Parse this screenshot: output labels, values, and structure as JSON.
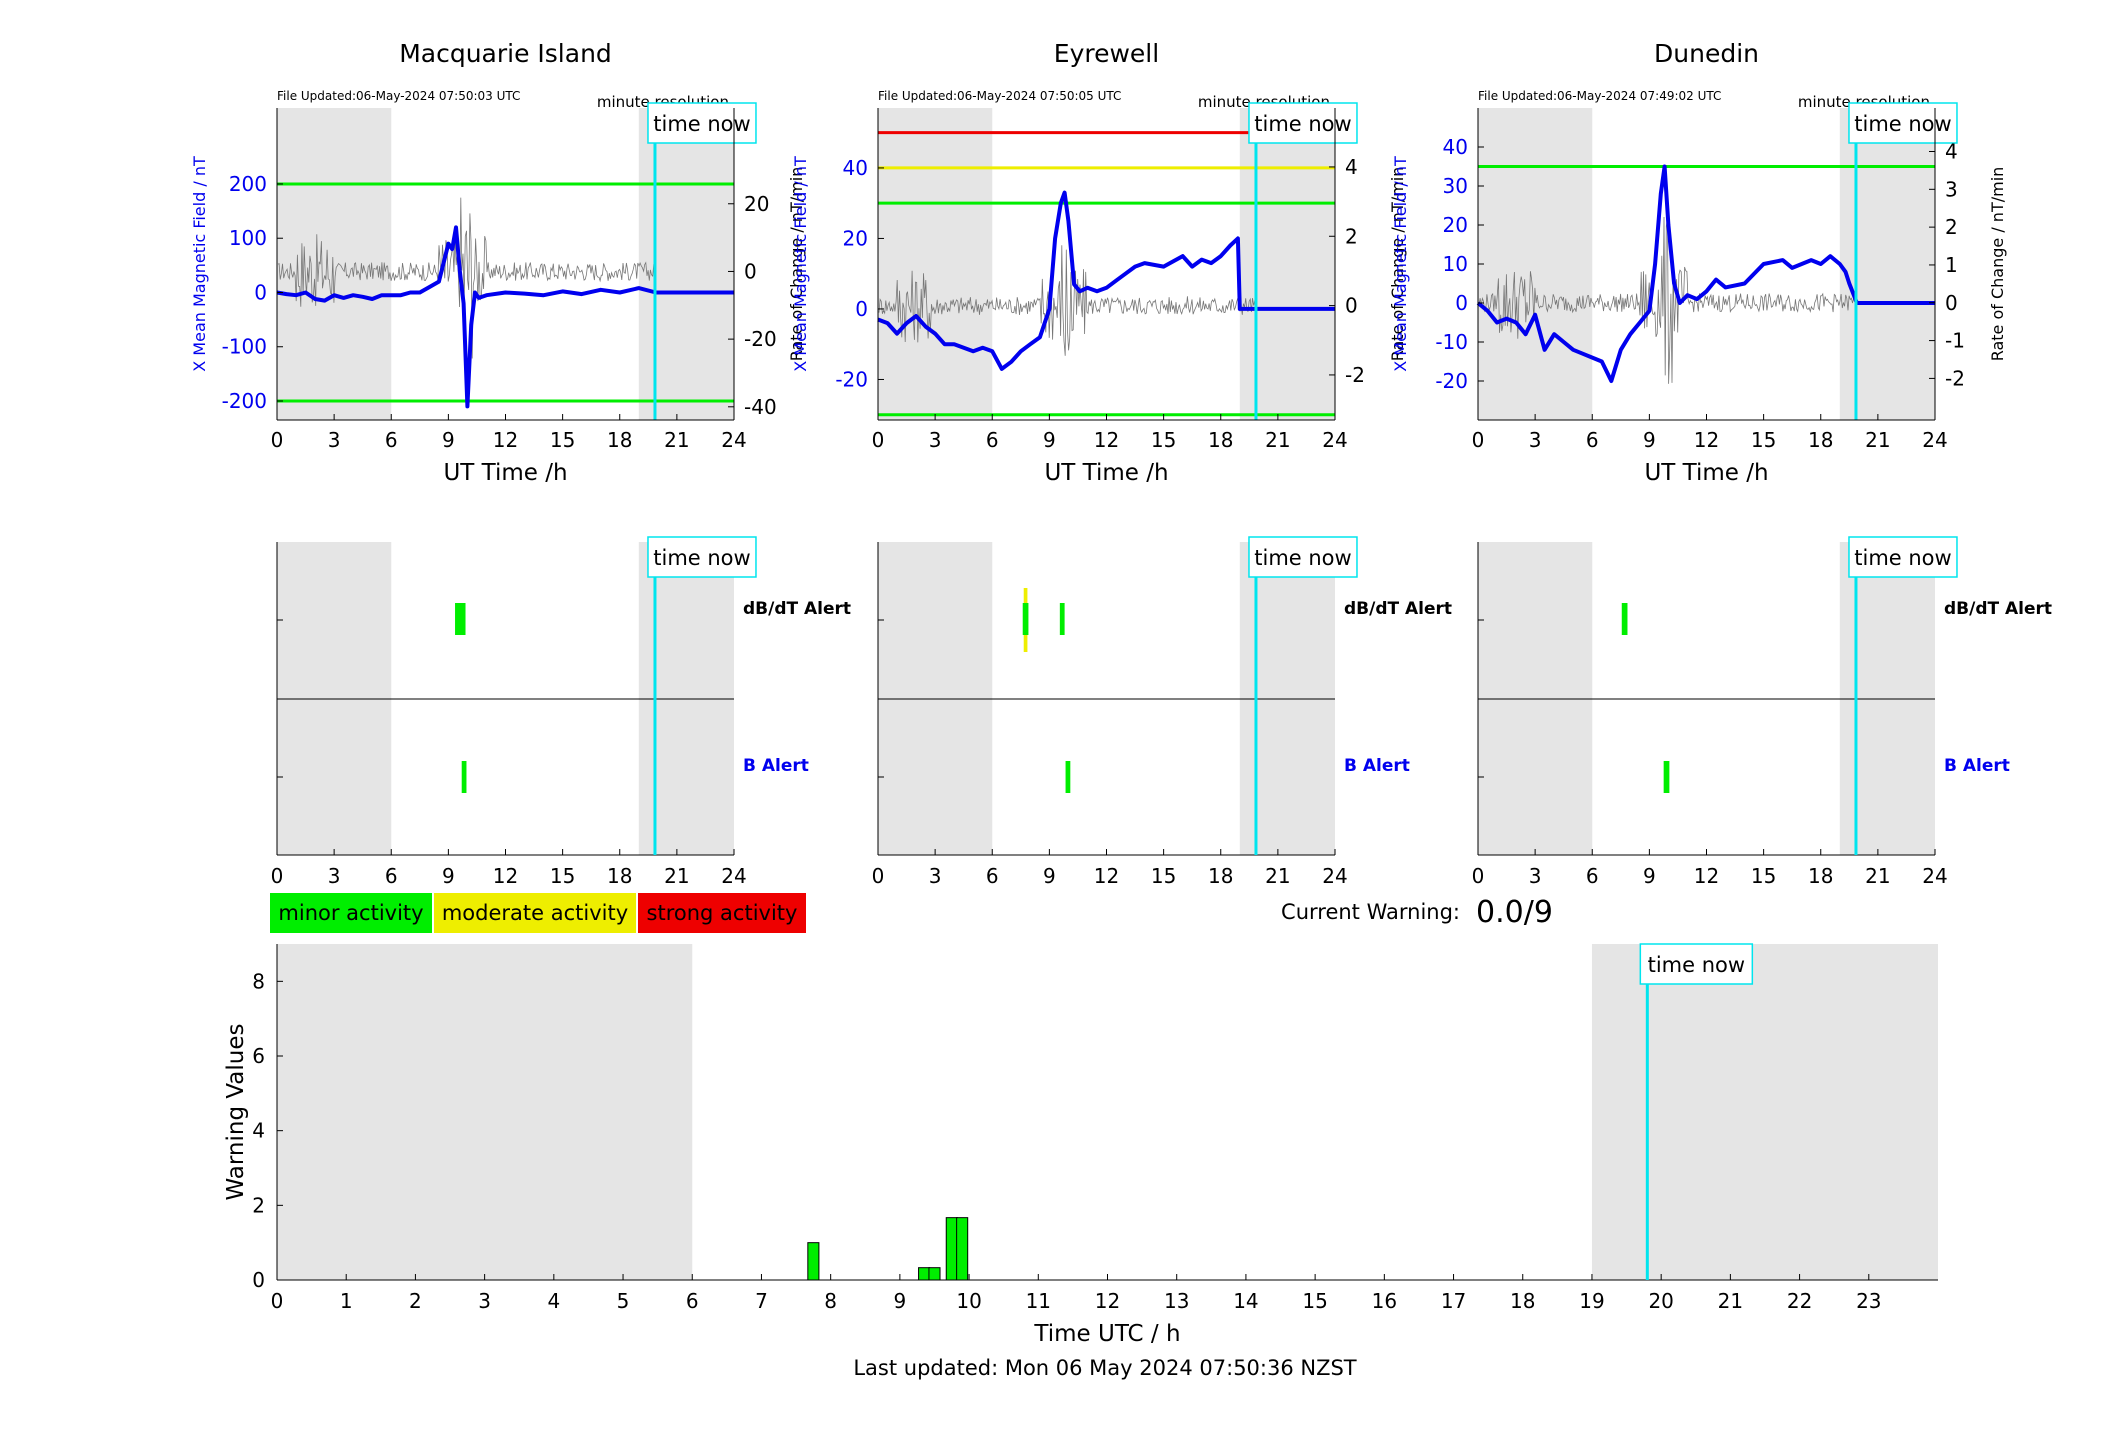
{
  "colors": {
    "blue": "#0000ee",
    "cyan": "#00e5ee",
    "green": "#00ee00",
    "yellow": "#eeee00",
    "red": "#ee0000",
    "night": "#e5e5e5",
    "gray_trace": "#777777"
  },
  "panel_texts": {
    "time_now": "time now",
    "minute_res": "minute resolution",
    "ut_label": "UT Time /h",
    "y_left": "X Mean Magnetic Field / nT",
    "y_right": "Rate of Change / nT/min",
    "dbdt_alert": "dB/dT Alert",
    "b_alert": "B Alert"
  },
  "legend": {
    "minor": "minor activity",
    "moderate": "moderate activity",
    "strong": "strong activity"
  },
  "current_warning": {
    "label": "Current Warning:",
    "value": "0.0/9"
  },
  "footer": "Last updated: Mon 06 May 2024 07:50:36 NZST",
  "chart_data": [
    {
      "type": "line",
      "station": "Macquarie Island",
      "file_updated": "File Updated:06-May-2024 07:50:03 UTC",
      "xlabel": "UT Time /h",
      "ylabel": "X Mean Magnetic Field / nT",
      "ylabel_right": "Rate of Change / nT/min",
      "xlim": [
        0,
        24
      ],
      "xticks": [
        0,
        3,
        6,
        9,
        12,
        15,
        18,
        21,
        24
      ],
      "ylim": [
        -235,
        340
      ],
      "yticks": [
        -200,
        -100,
        0,
        100,
        200
      ],
      "ylim_right": [
        -43.9,
        48.3
      ],
      "yticks_right": [
        -40,
        -20,
        0,
        20
      ],
      "thresholds": [
        {
          "level": "minor",
          "value": 200
        },
        {
          "level": "minor",
          "value": -200
        }
      ],
      "time_now": 19.85,
      "night_bands": [
        [
          0,
          6
        ],
        [
          19,
          24
        ]
      ],
      "series": [
        {
          "name": "X Mean Magnetic Field",
          "x": [
            0,
            0.5,
            1,
            1.5,
            2,
            2.5,
            3,
            3.5,
            4,
            4.5,
            5,
            5.5,
            6,
            6.5,
            7,
            7.5,
            8,
            8.5,
            9,
            9.2,
            9.4,
            9.6,
            9.8,
            10,
            10.2,
            10.4,
            10.6,
            11,
            12,
            13,
            14,
            15,
            16,
            17,
            18,
            19,
            19.9,
            24
          ],
          "y": [
            0,
            -3,
            -5,
            0,
            -12,
            -15,
            -5,
            -10,
            -5,
            -8,
            -12,
            -5,
            -5,
            -5,
            0,
            0,
            10,
            20,
            90,
            80,
            120,
            40,
            -20,
            -210,
            -60,
            0,
            -10,
            -5,
            0,
            -2,
            -5,
            2,
            -3,
            5,
            0,
            8,
            0,
            0
          ]
        }
      ],
      "alerts": {
        "dbdt": [
          {
            "start": 9.35,
            "end": 9.9,
            "level": "minor"
          }
        ],
        "b": [
          {
            "start": 9.7,
            "end": 9.95,
            "level": "minor"
          }
        ]
      }
    },
    {
      "type": "line",
      "station": "Eyrewell",
      "file_updated": "File Updated:06-May-2024 07:50:05 UTC",
      "xlabel": "UT Time /h",
      "ylabel": "X Mean Magnetic Field / nT",
      "ylabel_right": "Rate of Change / nT/min",
      "xlim": [
        0,
        24
      ],
      "xticks": [
        0,
        3,
        6,
        9,
        12,
        15,
        18,
        21,
        24
      ],
      "ylim": [
        -31.5,
        57
      ],
      "yticks": [
        -20,
        0,
        20,
        40
      ],
      "ylim_right": [
        -3.3,
        5.7
      ],
      "yticks_right": [
        -2,
        0,
        2,
        4
      ],
      "thresholds": [
        {
          "level": "minor",
          "value": 30
        },
        {
          "level": "minor",
          "value": -30
        },
        {
          "level": "moderate",
          "value": 40
        },
        {
          "level": "strong",
          "value": 50
        }
      ],
      "time_now": 19.85,
      "night_bands": [
        [
          0,
          6
        ],
        [
          19,
          24
        ]
      ],
      "series": [
        {
          "name": "X Mean Magnetic Field",
          "x": [
            0,
            0.5,
            1,
            1.5,
            2,
            2.5,
            3,
            3.5,
            4,
            4.5,
            5,
            5.5,
            6,
            6.5,
            7,
            7.5,
            8,
            8.5,
            9,
            9.3,
            9.6,
            9.8,
            10,
            10.3,
            10.6,
            11,
            11.5,
            12,
            12.5,
            13,
            13.5,
            14,
            15,
            16,
            16.5,
            17,
            17.5,
            18,
            18.5,
            18.9,
            19,
            19.9,
            24
          ],
          "y": [
            -3,
            -4,
            -7,
            -4,
            -2,
            -5,
            -7,
            -10,
            -10,
            -11,
            -12,
            -11,
            -12,
            -17,
            -15,
            -12,
            -10,
            -8,
            0,
            20,
            30,
            33,
            25,
            7,
            5,
            6,
            5,
            6,
            8,
            10,
            12,
            13,
            12,
            15,
            12,
            14,
            13,
            15,
            18,
            20,
            0,
            0,
            0
          ]
        }
      ],
      "alerts": {
        "dbdt": [
          {
            "start": 7.6,
            "end": 7.9,
            "level": "minor",
            "moderate_edges": true
          },
          {
            "start": 9.55,
            "end": 9.8,
            "level": "minor"
          }
        ],
        "b": [
          {
            "start": 9.85,
            "end": 10.1,
            "level": "minor"
          }
        ]
      }
    },
    {
      "type": "line",
      "station": "Dunedin",
      "file_updated": "File Updated:06-May-2024 07:49:02 UTC",
      "xlabel": "UT Time /h",
      "ylabel": "X Mean Magnetic Field / nT",
      "ylabel_right": "Rate of Change / nT/min",
      "xlim": [
        0,
        24
      ],
      "xticks": [
        0,
        3,
        6,
        9,
        12,
        15,
        18,
        21,
        24
      ],
      "ylim": [
        -30,
        50
      ],
      "yticks": [
        -20,
        -10,
        0,
        10,
        20,
        30,
        40
      ],
      "ylim_right": [
        -3.1,
        5.15
      ],
      "yticks_right": [
        -2,
        -1,
        0,
        1,
        2,
        3,
        4
      ],
      "thresholds": [
        {
          "level": "minor",
          "value": 35
        }
      ],
      "time_now": 19.85,
      "night_bands": [
        [
          0,
          6
        ],
        [
          19,
          24
        ]
      ],
      "series": [
        {
          "name": "X Mean Magnetic Field",
          "x": [
            0,
            0.5,
            1,
            1.5,
            2,
            2.5,
            3,
            3.5,
            4,
            4.5,
            5,
            5.5,
            6,
            6.5,
            7,
            7.5,
            8,
            8.5,
            9,
            9.3,
            9.6,
            9.8,
            10,
            10.3,
            10.6,
            11,
            11.5,
            12,
            12.5,
            13,
            14,
            15,
            16,
            16.5,
            17,
            17.5,
            18,
            18.5,
            19,
            19.3,
            19.5,
            19.9,
            24
          ],
          "y": [
            0,
            -2,
            -5,
            -4,
            -5,
            -8,
            -3,
            -12,
            -8,
            -10,
            -12,
            -13,
            -14,
            -15,
            -20,
            -12,
            -8,
            -5,
            -2,
            10,
            28,
            35,
            20,
            5,
            0,
            2,
            1,
            3,
            6,
            4,
            5,
            10,
            11,
            9,
            10,
            11,
            10,
            12,
            10,
            8,
            5,
            0,
            0
          ]
        }
      ],
      "alerts": {
        "dbdt": [
          {
            "start": 7.55,
            "end": 7.85,
            "level": "minor"
          }
        ],
        "b": [
          {
            "start": 9.75,
            "end": 10.05,
            "level": "minor"
          }
        ]
      }
    },
    {
      "type": "bar",
      "xlabel": "Time UTC / h",
      "ylabel": "Warning Values",
      "xlim": [
        0,
        24
      ],
      "xticks": [
        0,
        1,
        2,
        3,
        4,
        5,
        6,
        7,
        8,
        9,
        10,
        11,
        12,
        13,
        14,
        15,
        16,
        17,
        18,
        19,
        20,
        21,
        22,
        23
      ],
      "ylim": [
        0,
        9
      ],
      "yticks": [
        0,
        2,
        4,
        6,
        8
      ],
      "time_now": 19.8,
      "night_bands": [
        [
          0,
          6
        ],
        [
          19,
          24
        ]
      ],
      "bars": [
        {
          "x": 7.75,
          "value": 1.0
        },
        {
          "x": 9.35,
          "value": 0.33
        },
        {
          "x": 9.5,
          "value": 0.33
        },
        {
          "x": 9.75,
          "value": 1.67
        },
        {
          "x": 9.9,
          "value": 1.67
        }
      ]
    }
  ]
}
